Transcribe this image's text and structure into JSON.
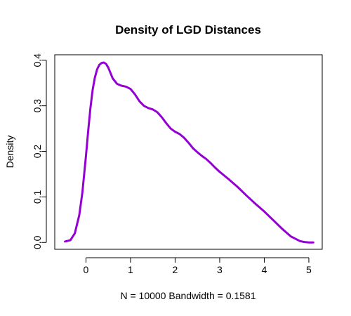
{
  "chart_data": {
    "type": "line",
    "title": "Density of LGD Distances",
    "xlabel": "N = 10000   Bandwidth = 0.1581",
    "ylabel": "Density",
    "xlim": [
      -0.7,
      5.3
    ],
    "ylim": [
      -0.015,
      0.412
    ],
    "x_ticks": [
      0,
      1,
      2,
      3,
      4,
      5
    ],
    "x_tick_labels": [
      "0",
      "1",
      "2",
      "3",
      "4",
      "5"
    ],
    "y_ticks": [
      0.0,
      0.1,
      0.2,
      0.3,
      0.4
    ],
    "y_tick_labels": [
      "0.0",
      "0.1",
      "0.2",
      "0.3",
      "0.4"
    ],
    "grid": false,
    "series": [
      {
        "color": "#9400d3",
        "x": [
          -0.47,
          -0.35,
          -0.25,
          -0.15,
          -0.08,
          0.0,
          0.05,
          0.1,
          0.15,
          0.2,
          0.25,
          0.3,
          0.35,
          0.4,
          0.45,
          0.5,
          0.55,
          0.6,
          0.7,
          0.8,
          0.9,
          1.0,
          1.1,
          1.2,
          1.3,
          1.4,
          1.5,
          1.6,
          1.7,
          1.8,
          1.9,
          2.0,
          2.1,
          2.2,
          2.3,
          2.4,
          2.5,
          2.6,
          2.7,
          2.8,
          2.9,
          3.0,
          3.2,
          3.4,
          3.6,
          3.8,
          4.0,
          4.2,
          4.4,
          4.6,
          4.8,
          4.9,
          5.0,
          5.1
        ],
        "y": [
          0.002,
          0.005,
          0.02,
          0.06,
          0.11,
          0.19,
          0.245,
          0.295,
          0.335,
          0.362,
          0.38,
          0.39,
          0.394,
          0.395,
          0.392,
          0.384,
          0.372,
          0.36,
          0.348,
          0.344,
          0.342,
          0.337,
          0.325,
          0.31,
          0.3,
          0.295,
          0.292,
          0.286,
          0.275,
          0.262,
          0.25,
          0.243,
          0.238,
          0.23,
          0.219,
          0.207,
          0.198,
          0.19,
          0.183,
          0.174,
          0.164,
          0.155,
          0.139,
          0.122,
          0.103,
          0.085,
          0.068,
          0.049,
          0.03,
          0.013,
          0.003,
          0.001,
          0.0,
          0.0
        ]
      }
    ]
  }
}
